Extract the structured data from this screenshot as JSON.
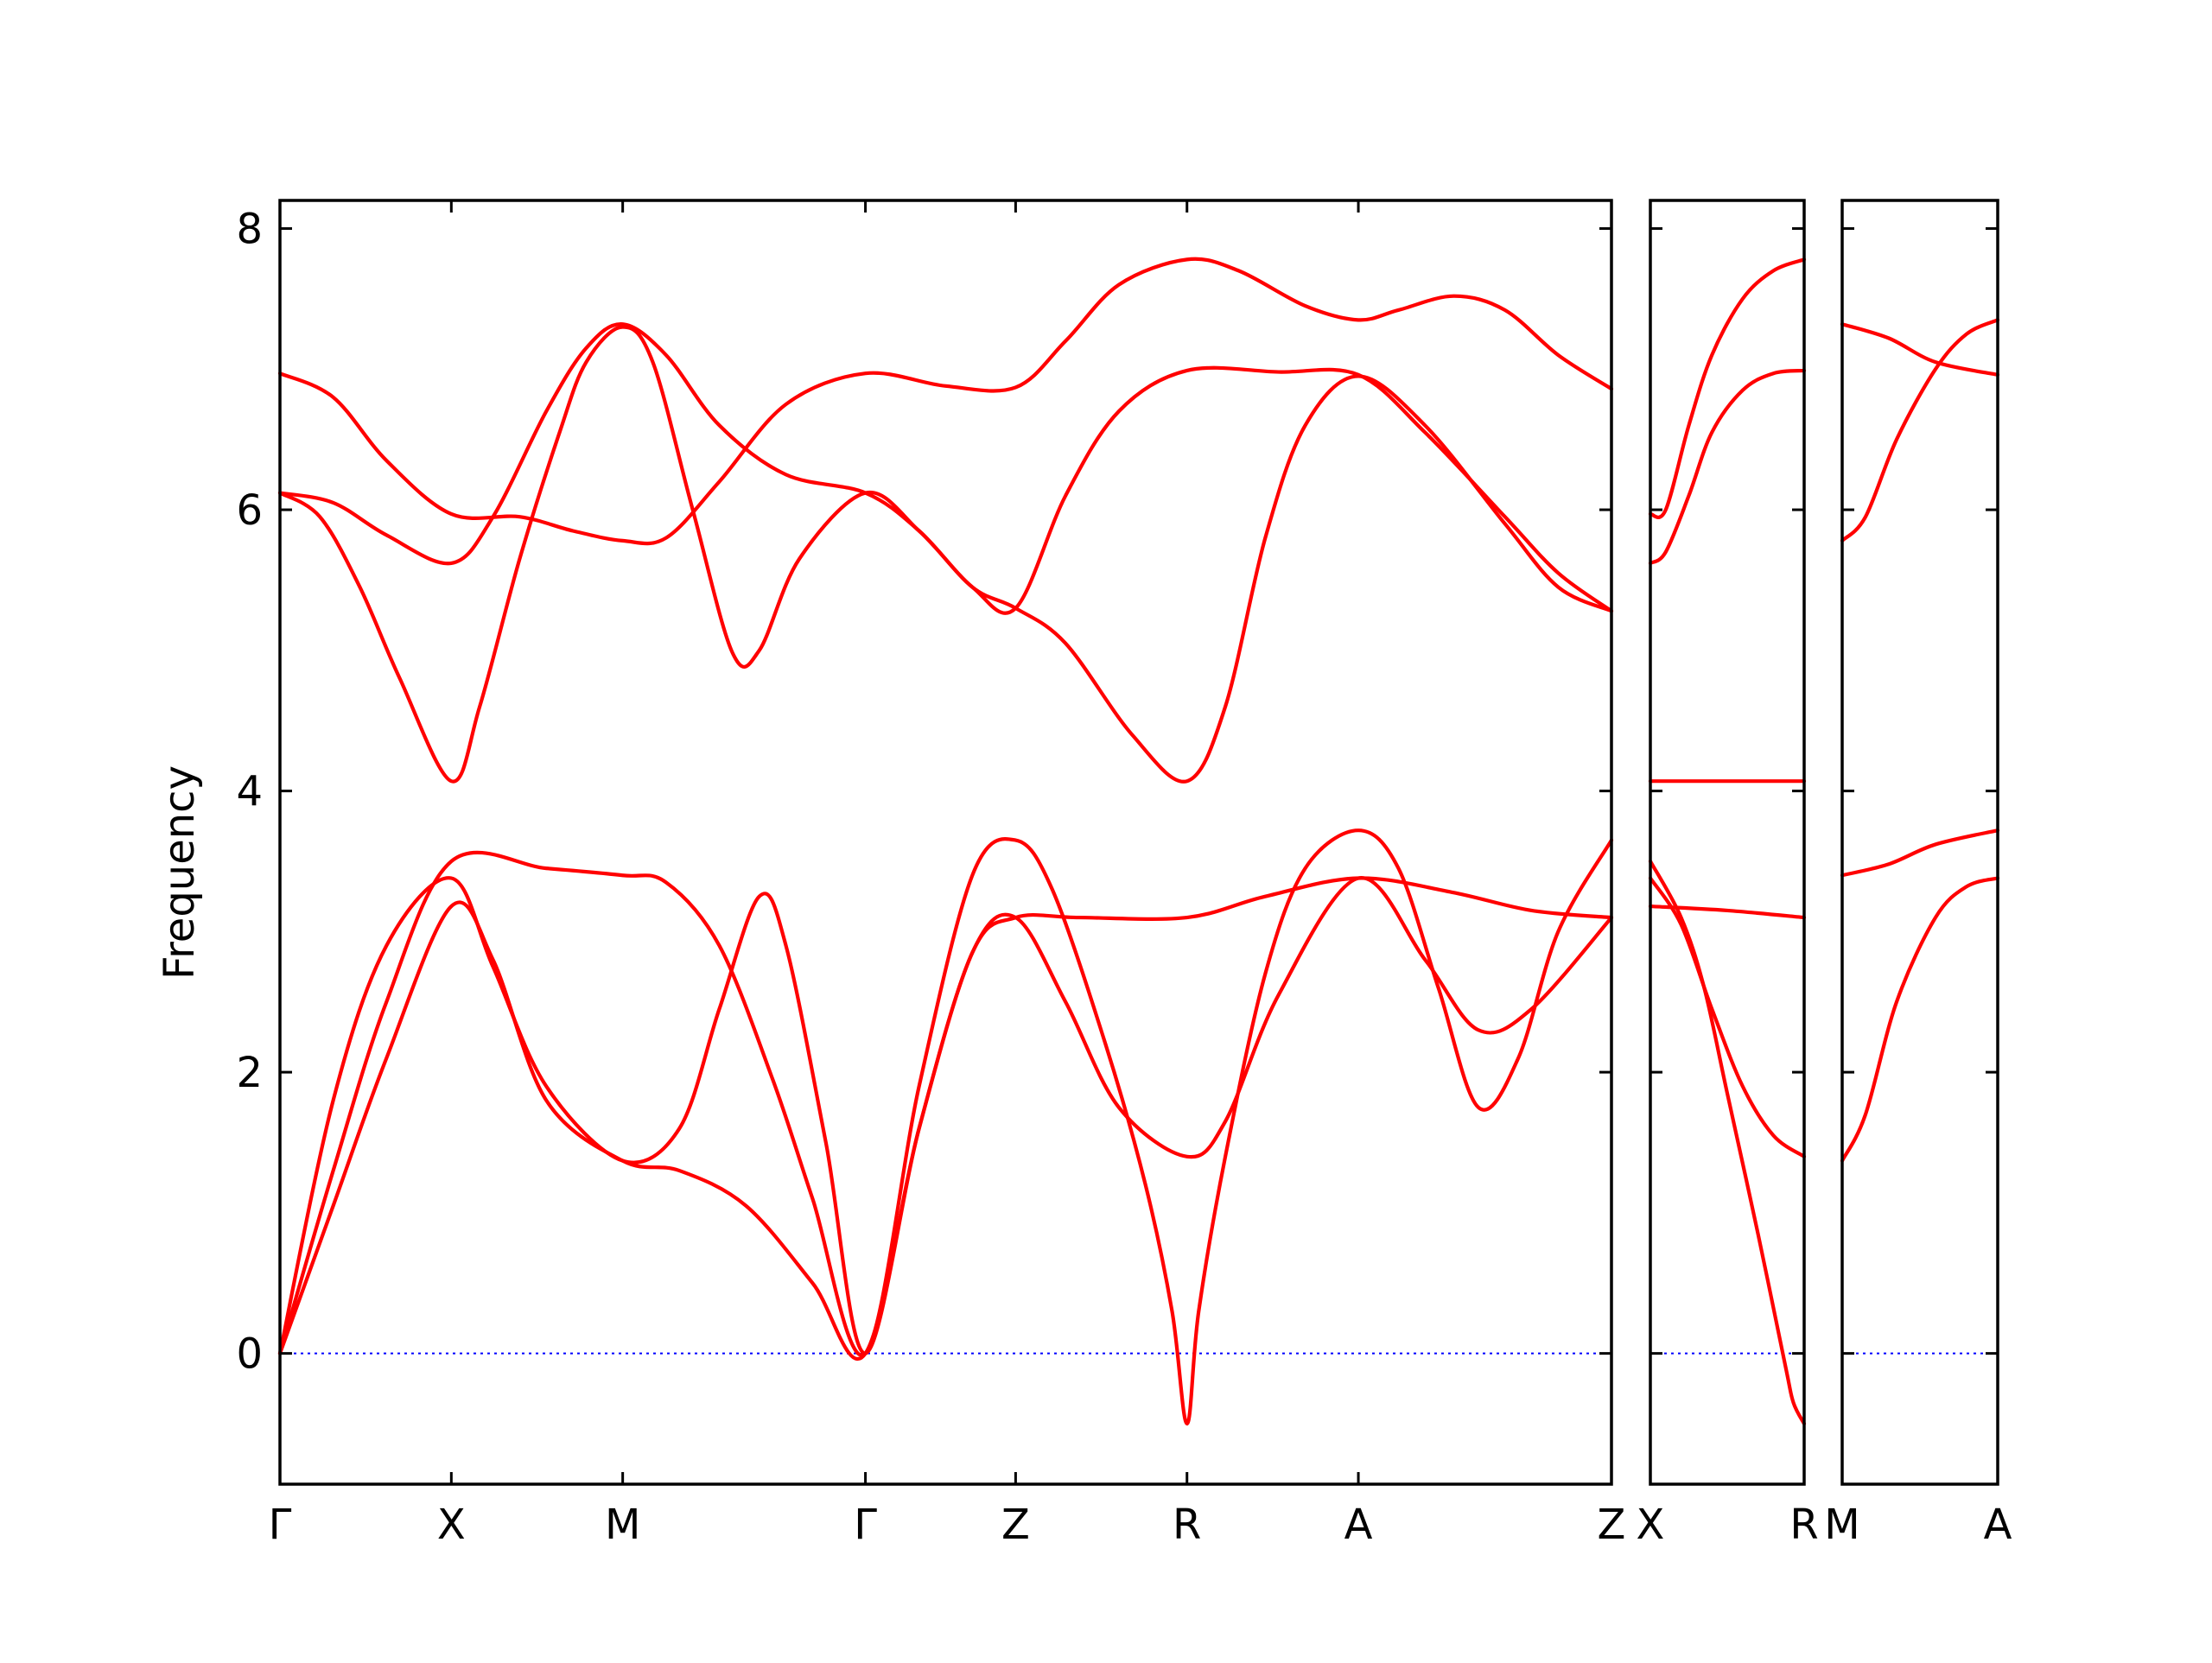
{
  "colors": {
    "band": "#ff0000",
    "zero_line": "#0000ff",
    "axes": "#000000"
  },
  "chart_data": {
    "type": "line",
    "title": "",
    "xlabel": "",
    "ylabel": "Frequency",
    "ylim": [
      -0.93,
      8.2
    ],
    "yticks": [
      "0",
      "2",
      "4",
      "6",
      "8"
    ],
    "grid": false,
    "legend": "none",
    "zero_line": {
      "y": 0,
      "style": "dotted",
      "color": "#0000ff"
    },
    "panels": [
      {
        "id": "main",
        "xlim": [
          0,
          1
        ],
        "ticks": [
          {
            "x": 0.0,
            "label": "Γ"
          },
          {
            "x": 0.1287,
            "label": "X"
          },
          {
            "x": 0.2574,
            "label": "M"
          },
          {
            "x": 0.4397,
            "label": "Γ"
          },
          {
            "x": 0.5525,
            "label": "Z"
          },
          {
            "x": 0.6812,
            "label": "R"
          },
          {
            "x": 0.8099,
            "label": "A"
          },
          {
            "x": 1.0,
            "label": "Z"
          }
        ],
        "series": [
          {
            "values": [
              [
                0,
                6.97
              ],
              [
                0.04,
                6.8
              ],
              [
                0.08,
                6.35
              ],
              [
                0.1287,
                5.97
              ],
              [
                0.18,
                5.95
              ],
              [
                0.22,
                5.85
              ],
              [
                0.2574,
                5.78
              ],
              [
                0.29,
                5.8
              ],
              [
                0.33,
                6.2
              ],
              [
                0.38,
                6.75
              ],
              [
                0.4397,
                6.97
              ],
              [
                0.5,
                6.88
              ],
              [
                0.5525,
                6.87
              ],
              [
                0.59,
                7.2
              ],
              [
                0.63,
                7.6
              ],
              [
                0.6812,
                7.78
              ],
              [
                0.72,
                7.7
              ],
              [
                0.77,
                7.45
              ],
              [
                0.8099,
                7.35
              ],
              [
                0.84,
                7.42
              ],
              [
                0.8817,
                7.52
              ],
              [
                0.92,
                7.42
              ],
              [
                0.96,
                7.1
              ],
              [
                1.0,
                6.86
              ]
            ]
          },
          {
            "values": [
              [
                0,
                6.12
              ],
              [
                0.04,
                6.05
              ],
              [
                0.08,
                5.82
              ],
              [
                0.1287,
                5.62
              ],
              [
                0.16,
                5.95
              ],
              [
                0.2,
                6.7
              ],
              [
                0.23,
                7.15
              ],
              [
                0.2574,
                7.32
              ],
              [
                0.29,
                7.1
              ],
              [
                0.33,
                6.6
              ],
              [
                0.38,
                6.25
              ],
              [
                0.4397,
                6.12
              ],
              [
                0.48,
                5.85
              ],
              [
                0.52,
                5.45
              ],
              [
                0.5525,
                5.3
              ],
              [
                0.59,
                6.1
              ],
              [
                0.63,
                6.7
              ],
              [
                0.6812,
                6.99
              ],
              [
                0.75,
                6.98
              ],
              [
                0.8099,
                6.96
              ],
              [
                0.86,
                6.55
              ],
              [
                0.92,
                5.95
              ],
              [
                0.96,
                5.55
              ],
              [
                1.0,
                5.28
              ]
            ]
          },
          {
            "values": [
              [
                0,
                6.12
              ],
              [
                0.03,
                5.95
              ],
              [
                0.06,
                5.45
              ],
              [
                0.09,
                4.8
              ],
              [
                0.1287,
                4.07
              ],
              [
                0.15,
                4.6
              ],
              [
                0.18,
                5.65
              ],
              [
                0.21,
                6.55
              ],
              [
                0.23,
                7.05
              ],
              [
                0.2574,
                7.3
              ],
              [
                0.28,
                7.05
              ],
              [
                0.31,
                6.0
              ],
              [
                0.34,
                4.98
              ],
              [
                0.36,
                5.0
              ],
              [
                0.39,
                5.65
              ],
              [
                0.4397,
                6.12
              ],
              [
                0.48,
                5.85
              ],
              [
                0.52,
                5.45
              ],
              [
                0.5525,
                5.3
              ],
              [
                0.59,
                5.05
              ],
              [
                0.64,
                4.4
              ],
              [
                0.6812,
                4.07
              ],
              [
                0.71,
                4.6
              ],
              [
                0.74,
                5.8
              ],
              [
                0.77,
                6.6
              ],
              [
                0.8099,
                6.95
              ],
              [
                0.86,
                6.6
              ],
              [
                0.92,
                5.9
              ],
              [
                0.96,
                5.45
              ],
              [
                1.0,
                5.28
              ]
            ]
          },
          {
            "values": [
              [
                0,
                0
              ],
              [
                0.04,
                1.3
              ],
              [
                0.08,
                2.5
              ],
              [
                0.1287,
                3.5
              ],
              [
                0.2,
                3.45
              ],
              [
                0.2574,
                3.4
              ],
              [
                0.29,
                3.35
              ],
              [
                0.33,
                2.9
              ],
              [
                0.37,
                1.95
              ],
              [
                0.4,
                1.1
              ],
              [
                0.4397,
                0.0
              ],
              [
                0.48,
                1.9
              ],
              [
                0.52,
                3.4
              ],
              [
                0.5525,
                3.65
              ],
              [
                0.58,
                3.3
              ],
              [
                0.62,
                2.2
              ],
              [
                0.65,
                1.2
              ],
              [
                0.67,
                0.3
              ],
              [
                0.6812,
                -0.5
              ],
              [
                0.69,
                0.3
              ],
              [
                0.71,
                1.4
              ],
              [
                0.74,
                2.7
              ],
              [
                0.77,
                3.45
              ],
              [
                0.8099,
                3.72
              ],
              [
                0.84,
                3.45
              ],
              [
                0.87,
                2.6
              ],
              [
                0.9,
                1.75
              ],
              [
                0.93,
                2.1
              ],
              [
                0.96,
                3.0
              ],
              [
                1.0,
                3.65
              ]
            ]
          },
          {
            "values": [
              [
                0,
                0
              ],
              [
                0.04,
                1.8
              ],
              [
                0.08,
                2.9
              ],
              [
                0.1287,
                3.38
              ],
              [
                0.16,
                2.75
              ],
              [
                0.2,
                1.9
              ],
              [
                0.2574,
                1.37
              ],
              [
                0.3,
                1.6
              ],
              [
                0.33,
                2.45
              ],
              [
                0.36,
                3.25
              ],
              [
                0.38,
                2.9
              ],
              [
                0.41,
                1.5
              ],
              [
                0.4397,
                0.0
              ],
              [
                0.48,
                1.6
              ],
              [
                0.52,
                2.85
              ],
              [
                0.5525,
                3.1
              ],
              [
                0.59,
                2.5
              ],
              [
                0.63,
                1.75
              ],
              [
                0.6812,
                1.4
              ],
              [
                0.71,
                1.65
              ],
              [
                0.75,
                2.55
              ],
              [
                0.8099,
                3.38
              ],
              [
                0.86,
                2.8
              ],
              [
                0.9,
                2.3
              ],
              [
                0.94,
                2.45
              ],
              [
                1.0,
                3.1
              ]
            ]
          },
          {
            "values": [
              [
                0,
                0
              ],
              [
                0.04,
                1.05
              ],
              [
                0.08,
                2.1
              ],
              [
                0.1287,
                3.18
              ],
              [
                0.16,
                2.8
              ],
              [
                0.2,
                1.8
              ],
              [
                0.2574,
                1.37
              ],
              [
                0.3,
                1.3
              ],
              [
                0.35,
                1.05
              ],
              [
                0.4,
                0.5
              ],
              [
                0.4397,
                0.0
              ],
              [
                0.48,
                1.6
              ],
              [
                0.52,
                2.85
              ],
              [
                0.5525,
                3.1
              ],
              [
                0.6,
                3.1
              ],
              [
                0.6812,
                3.1
              ],
              [
                0.74,
                3.25
              ],
              [
                0.8099,
                3.38
              ],
              [
                0.88,
                3.28
              ],
              [
                0.94,
                3.15
              ],
              [
                1.0,
                3.1
              ]
            ]
          }
        ]
      },
      {
        "id": "X-R",
        "xlim": [
          0,
          1
        ],
        "ticks": [
          {
            "x": 0.0,
            "label": "X"
          },
          {
            "x": 1.0,
            "label": "R"
          }
        ],
        "series": [
          {
            "values": [
              [
                0,
                5.97
              ],
              [
                0.1,
                6.0
              ],
              [
                0.25,
                6.6
              ],
              [
                0.4,
                7.1
              ],
              [
                0.6,
                7.5
              ],
              [
                0.8,
                7.7
              ],
              [
                1.0,
                7.78
              ]
            ]
          },
          {
            "values": [
              [
                0,
                5.62
              ],
              [
                0.1,
                5.7
              ],
              [
                0.25,
                6.1
              ],
              [
                0.4,
                6.55
              ],
              [
                0.6,
                6.85
              ],
              [
                0.8,
                6.97
              ],
              [
                1.0,
                6.99
              ]
            ]
          },
          {
            "values": [
              [
                0,
                4.07
              ],
              [
                0.5,
                4.07
              ],
              [
                1.0,
                4.07
              ]
            ]
          },
          {
            "values": [
              [
                0,
                3.5
              ],
              [
                0.2,
                3.1
              ],
              [
                0.35,
                2.6
              ],
              [
                0.5,
                1.85
              ],
              [
                0.7,
                0.85
              ],
              [
                0.88,
                -0.1
              ],
              [
                0.93,
                -0.35
              ],
              [
                1.0,
                -0.5
              ]
            ]
          },
          {
            "values": [
              [
                0,
                3.38
              ],
              [
                0.2,
                3.05
              ],
              [
                0.4,
                2.45
              ],
              [
                0.6,
                1.9
              ],
              [
                0.8,
                1.55
              ],
              [
                1.0,
                1.4
              ]
            ]
          },
          {
            "values": [
              [
                0,
                3.18
              ],
              [
                0.5,
                3.15
              ],
              [
                1.0,
                3.1
              ]
            ]
          }
        ]
      },
      {
        "id": "M-A",
        "xlim": [
          0,
          1
        ],
        "ticks": [
          {
            "x": 0.0,
            "label": "M"
          },
          {
            "x": 1.0,
            "label": "A"
          }
        ],
        "series": [
          {
            "values": [
              [
                0,
                7.32
              ],
              [
                0.3,
                7.22
              ],
              [
                0.6,
                7.05
              ],
              [
                1.0,
                6.96
              ]
            ]
          },
          {
            "values": [
              [
                0,
                5.78
              ],
              [
                0.15,
                5.95
              ],
              [
                0.35,
                6.5
              ],
              [
                0.6,
                7.0
              ],
              [
                0.8,
                7.25
              ],
              [
                1.0,
                7.35
              ]
            ]
          },
          {
            "values": [
              [
                0,
                3.4
              ],
              [
                0.3,
                3.48
              ],
              [
                0.6,
                3.62
              ],
              [
                1.0,
                3.72
              ]
            ]
          },
          {
            "values": [
              [
                0,
                1.37
              ],
              [
                0.15,
                1.7
              ],
              [
                0.35,
                2.5
              ],
              [
                0.6,
                3.1
              ],
              [
                0.8,
                3.32
              ],
              [
                1.0,
                3.38
              ]
            ]
          }
        ]
      }
    ]
  }
}
